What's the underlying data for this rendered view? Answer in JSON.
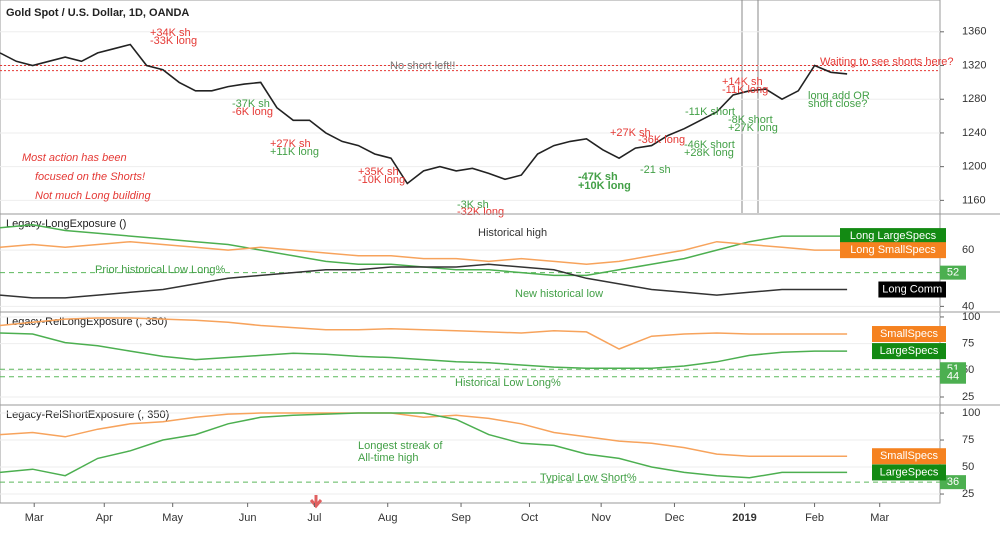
{
  "chart_data": [
    {
      "type": "line",
      "title": "Gold Spot / U.S. Dollar, 1D, OANDA",
      "color": "#222222",
      "x": [
        0,
        1,
        2,
        3,
        4,
        5,
        6,
        7,
        8,
        9,
        10,
        11,
        12,
        13,
        14,
        15,
        16,
        17,
        18,
        19,
        20,
        21,
        22,
        23,
        24,
        25,
        26,
        27,
        28,
        29,
        30,
        31,
        32,
        33,
        34,
        35,
        36,
        37,
        38,
        39,
        40,
        41,
        42,
        43,
        44,
        45,
        46,
        47,
        48,
        49,
        50,
        51,
        52
      ],
      "series": [
        {
          "color": "#222222",
          "values": [
            1335,
            1325,
            1320,
            1325,
            1330,
            1325,
            1335,
            1340,
            1345,
            1320,
            1315,
            1300,
            1290,
            1290,
            1295,
            1298,
            1300,
            1270,
            1255,
            1255,
            1240,
            1230,
            1225,
            1215,
            1210,
            1180,
            1195,
            1200,
            1195,
            1198,
            1192,
            1185,
            1190,
            1215,
            1225,
            1230,
            1233,
            1220,
            1210,
            1222,
            1225,
            1237,
            1245,
            1255,
            1265,
            1285,
            1290,
            1292,
            1280,
            1290,
            1320,
            1312,
            1310
          ]
        }
      ],
      "ylim": [
        1145,
        1393
      ],
      "yticks": [
        1160,
        1200,
        1240,
        1280,
        1320,
        1360
      ],
      "reference_lines": [
        1320,
        1314
      ],
      "annotations": [
        "+34K sh",
        "-33K long",
        "-37K sh",
        "-6K long",
        "+27K sh",
        "+11K long",
        "+35K sh",
        "-10K long",
        "-3K sh",
        "-32K long",
        "-47K sh",
        "+10K long",
        "-21 sh",
        "+27K sh",
        "-36K long",
        "-11K short",
        "-8K short",
        "+27K long",
        "-46K short",
        "+28K long",
        "+14K sh",
        "-11K long",
        "long add OR",
        "short close?",
        "No short left!!",
        "Waiting to see shorts here?",
        "Most action has been",
        "focused on the Shorts!",
        "Not much Long building"
      ]
    },
    {
      "type": "line",
      "title": "Legacy-LongExposure ()",
      "x": [
        0,
        2,
        4,
        6,
        8,
        10,
        12,
        14,
        16,
        18,
        20,
        22,
        24,
        26,
        28,
        30,
        32,
        34,
        36,
        38,
        40,
        42,
        44,
        46,
        48,
        50,
        52
      ],
      "series": [
        {
          "name": "Long LargeSpecs",
          "color": "#4caf50",
          "box": "#138a13",
          "values": [
            68,
            69,
            67,
            66,
            65,
            64,
            63,
            62,
            60,
            58,
            56,
            55,
            55,
            54,
            53,
            53,
            52,
            51,
            51,
            53,
            55,
            57,
            60,
            63,
            65,
            65,
            65
          ]
        },
        {
          "name": "Long SmallSpecs",
          "color": "#f7a35c",
          "box": "#f58220",
          "values": [
            61,
            62,
            61,
            62,
            63,
            62,
            61,
            60,
            61,
            60,
            59,
            58,
            58,
            57,
            57,
            56,
            57,
            56,
            55,
            56,
            58,
            60,
            63,
            62,
            61,
            60,
            60
          ]
        },
        {
          "name": "Long Comm",
          "color": "#333333",
          "box": "#000000",
          "values": [
            44,
            43,
            43,
            44,
            45,
            46,
            48,
            50,
            51,
            52,
            53,
            53,
            54,
            54,
            54,
            55,
            54,
            53,
            50,
            48,
            46,
            45,
            44,
            45,
            46,
            46,
            46
          ]
        }
      ],
      "ylim": [
        38,
        72.5
      ],
      "yticks": [
        40,
        60
      ],
      "reference_lines": [
        52
      ],
      "annotations": [
        "Prior historical Low Long%",
        "Historical high",
        "New historical low"
      ]
    },
    {
      "type": "line",
      "title": "Legacy-RelLongExposure (, 350)",
      "x": [
        0,
        2,
        4,
        6,
        8,
        10,
        12,
        14,
        16,
        18,
        20,
        22,
        24,
        26,
        28,
        30,
        32,
        34,
        36,
        38,
        40,
        42,
        44,
        46,
        48,
        50,
        52
      ],
      "series": [
        {
          "name": "SmallSpecs",
          "color": "#f7a35c",
          "box": "#f58220",
          "values": [
            92,
            95,
            98,
            99,
            99,
            98,
            97,
            95,
            92,
            90,
            88,
            88,
            89,
            88,
            87,
            86,
            85,
            87,
            86,
            70,
            82,
            84,
            85,
            84,
            84,
            84,
            84
          ]
        },
        {
          "name": "LargeSpecs",
          "color": "#4caf50",
          "box": "#138a13",
          "values": [
            85,
            84,
            76,
            73,
            68,
            63,
            60,
            62,
            64,
            66,
            65,
            63,
            62,
            60,
            58,
            57,
            55,
            53,
            52,
            52,
            52,
            54,
            58,
            64,
            67,
            68,
            68
          ]
        }
      ],
      "ylim": [
        17.5,
        103.7
      ],
      "yticks": [
        25,
        50,
        75,
        100
      ],
      "reference_lines": [
        51,
        44
      ],
      "annotations": [
        "Historical Low Long%"
      ]
    },
    {
      "type": "line",
      "title": "Legacy-RelShortExposure (, 350)",
      "x": [
        0,
        2,
        4,
        6,
        8,
        10,
        12,
        14,
        16,
        18,
        20,
        22,
        24,
        26,
        28,
        30,
        32,
        34,
        36,
        38,
        40,
        42,
        44,
        46,
        48,
        50,
        52
      ],
      "series": [
        {
          "name": "SmallSpecs",
          "color": "#f7a35c",
          "box": "#f58220",
          "values": [
            80,
            82,
            78,
            85,
            90,
            92,
            96,
            99,
            100,
            100,
            100,
            100,
            100,
            96,
            98,
            95,
            90,
            82,
            78,
            74,
            72,
            68,
            62,
            60,
            60,
            60,
            60
          ]
        },
        {
          "name": "LargeSpecs",
          "color": "#4caf50",
          "box": "#138a13",
          "values": [
            45,
            48,
            42,
            58,
            65,
            75,
            80,
            90,
            96,
            98,
            99,
            100,
            100,
            100,
            94,
            80,
            72,
            70,
            62,
            58,
            50,
            45,
            42,
            40,
            45,
            45,
            45
          ]
        }
      ],
      "ylim": [
        16.7,
        106.5
      ],
      "yticks": [
        25,
        50,
        75,
        100
      ],
      "reference_lines": [
        36
      ],
      "annotations": [
        "Longest streak of",
        "All-time high",
        "Typical Low Short%"
      ],
      "xlim": [
        0,
        57.7
      ],
      "xticks": [
        {
          "value": 2.1,
          "label": "Mar"
        },
        {
          "value": 6.4,
          "label": "Apr"
        },
        {
          "value": 10.6,
          "label": "May"
        },
        {
          "value": 15.2,
          "label": "Jun"
        },
        {
          "value": 19.3,
          "label": "Jul"
        },
        {
          "value": 23.8,
          "label": "Aug"
        },
        {
          "value": 28.3,
          "label": "Sep"
        },
        {
          "value": 32.5,
          "label": "Oct"
        },
        {
          "value": 36.9,
          "label": "Nov"
        },
        {
          "value": 41.4,
          "label": "Dec"
        },
        {
          "value": 45.7,
          "label": "2019"
        },
        {
          "value": 50,
          "label": "Feb"
        },
        {
          "value": 54,
          "label": "Mar"
        }
      ]
    }
  ]
}
